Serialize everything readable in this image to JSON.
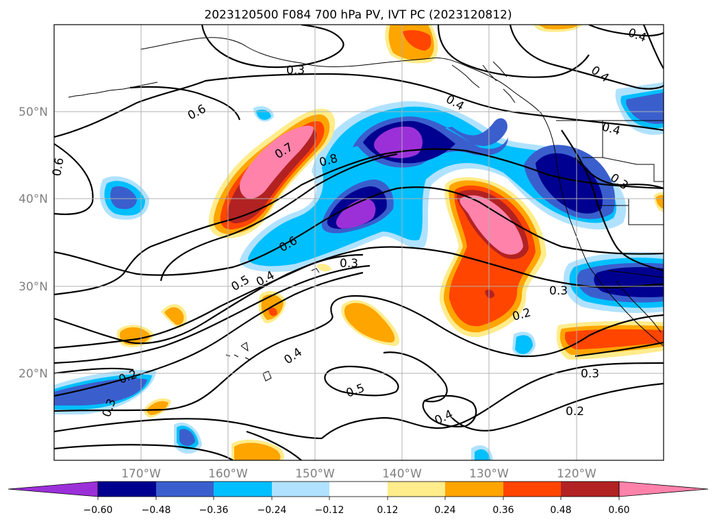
{
  "title": "2023120500 F084 700 hPa PV, IVT PC (2023120812)",
  "map": {
    "lon_range": [
      -180,
      -110
    ],
    "lat_range": [
      10,
      60
    ],
    "grid": true,
    "lat_ticks": [
      {
        "value": 50,
        "label": "50°N"
      },
      {
        "value": 40,
        "label": "40°N"
      },
      {
        "value": 30,
        "label": "30°N"
      },
      {
        "value": 20,
        "label": "20°N"
      }
    ],
    "lon_ticks": [
      {
        "value": -170,
        "label": "170°W"
      },
      {
        "value": -160,
        "label": "160°W"
      },
      {
        "value": -150,
        "label": "150°W"
      },
      {
        "value": -140,
        "label": "140°W"
      },
      {
        "value": -130,
        "label": "130°W"
      },
      {
        "value": -120,
        "label": "120°W"
      }
    ],
    "contour_labels": [
      "0.3",
      "0.4",
      "0.6",
      "0.4",
      "0.4",
      "0.4",
      "0.6",
      "0.7",
      "0.8",
      "0.3",
      "0.6",
      "0.3",
      "0.5",
      "0.4",
      "0.3",
      "0.2",
      "0.4",
      "0.2",
      "0.5",
      "0.3",
      "0.4",
      "0.3",
      "0.2"
    ]
  },
  "colorbar": {
    "tick_labels": [
      "−0.60",
      "−0.48",
      "−0.36",
      "−0.24",
      "−0.12",
      "0.12",
      "0.24",
      "0.36",
      "0.48",
      "0.60"
    ],
    "colors": [
      "#9b30d9",
      "#000090",
      "#3a5fcd",
      "#00bfff",
      "#b0e2ff",
      "#ffffff",
      "#ffec8b",
      "#ffa500",
      "#ff4500",
      "#b22222",
      "#ff82ab"
    ],
    "extend": "both"
  }
}
